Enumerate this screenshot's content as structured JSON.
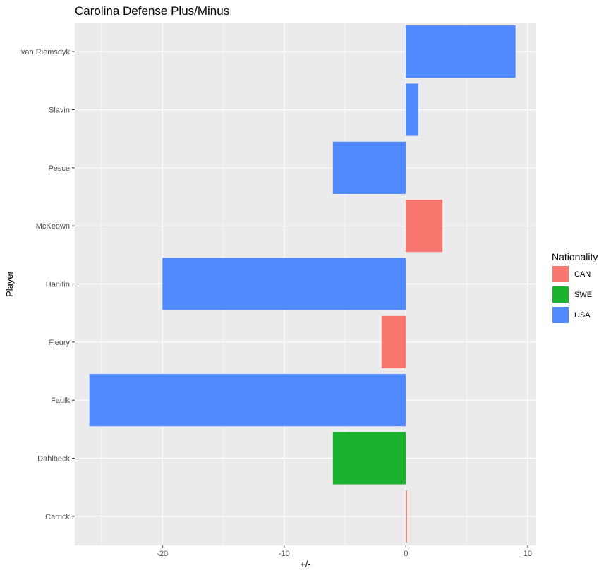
{
  "chart_data": {
    "type": "bar",
    "orientation": "horizontal",
    "title": "Carolina Defense Plus/Minus",
    "xlabel": "+/-",
    "ylabel": "Player",
    "xlim": [
      -27.2,
      10.7
    ],
    "xticks": [
      -20,
      -10,
      0,
      10
    ],
    "grid": true,
    "legend": {
      "title": "Nationality",
      "position": "right",
      "entries": [
        {
          "label": "CAN",
          "color": "#F8766D"
        },
        {
          "label": "SWE",
          "color": "#1AB22E"
        },
        {
          "label": "USA",
          "color": "#5189FF"
        }
      ]
    },
    "bars": [
      {
        "player": "van Riemsdyk",
        "value": 9,
        "nationality": "USA"
      },
      {
        "player": "Slavin",
        "value": 1,
        "nationality": "USA"
      },
      {
        "player": "Pesce",
        "value": -6,
        "nationality": "USA"
      },
      {
        "player": "McKeown",
        "value": 3,
        "nationality": "CAN"
      },
      {
        "player": "Hanifin",
        "value": -20,
        "nationality": "USA"
      },
      {
        "player": "Fleury",
        "value": -2,
        "nationality": "CAN"
      },
      {
        "player": "Faulk",
        "value": -26,
        "nationality": "USA"
      },
      {
        "player": "Dahlbeck",
        "value": -6,
        "nationality": "SWE"
      },
      {
        "player": "Carrick",
        "value": 0,
        "nationality": "CAN"
      }
    ]
  }
}
